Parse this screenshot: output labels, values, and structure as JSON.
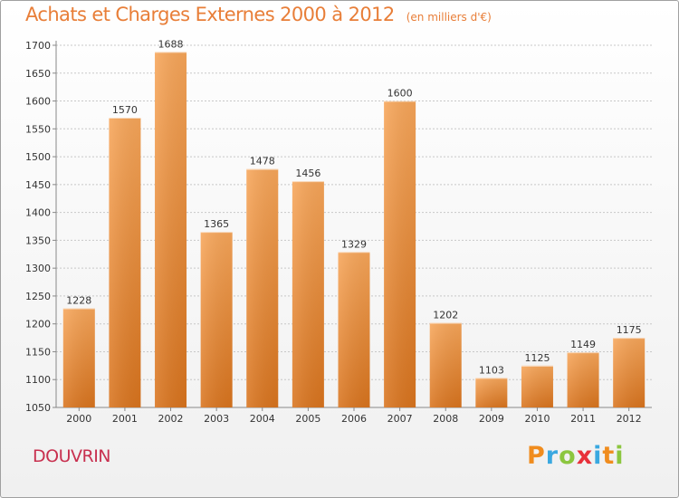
{
  "header": {
    "title": "Achats et Charges Externes 2000 à 2012",
    "subtitle": "(en milliers d'€)"
  },
  "footer": {
    "location": "DOUVRIN",
    "logo_letters": [
      "P",
      "r",
      "o",
      "x",
      "i",
      "t",
      "i"
    ],
    "logo_colors": [
      "#f08c1e",
      "#3aa8e0",
      "#8cc63f",
      "#e8303a",
      "#3aa8e0",
      "#f08c1e",
      "#8cc63f"
    ]
  },
  "chart_data": {
    "type": "bar",
    "categories": [
      "2000",
      "2001",
      "2002",
      "2003",
      "2004",
      "2005",
      "2006",
      "2007",
      "2008",
      "2009",
      "2010",
      "2011",
      "2012"
    ],
    "values": [
      1228,
      1570,
      1688,
      1365,
      1478,
      1456,
      1329,
      1600,
      1202,
      1103,
      1125,
      1149,
      1175
    ],
    "ylim": [
      1050,
      1700
    ],
    "yticks": [
      1050,
      1100,
      1150,
      1200,
      1250,
      1300,
      1350,
      1400,
      1450,
      1500,
      1550,
      1600,
      1650,
      1700
    ],
    "grid": true,
    "bar_color": "#f0923a"
  }
}
